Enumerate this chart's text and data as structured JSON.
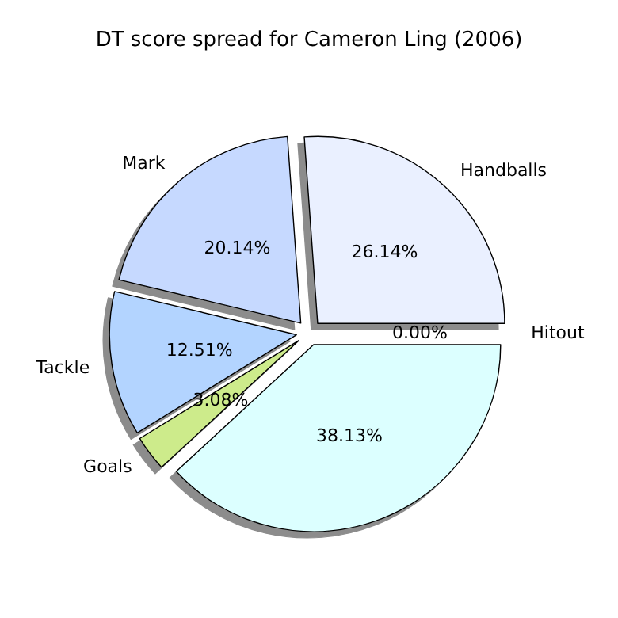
{
  "chart_data": {
    "type": "pie",
    "title": "DT score spread for Cameron Ling (2006)",
    "categories": [
      "Handballs",
      "Mark",
      "Tackle",
      "Goals",
      null,
      "Hitout"
    ],
    "values": [
      26.14,
      20.14,
      12.51,
      3.08,
      38.13,
      0.0
    ],
    "value_labels": [
      "26.14%",
      "20.14%",
      "12.51%",
      "3.08%",
      "38.13%",
      "0.00%"
    ],
    "colors": [
      "#eaf0ff",
      "#c6d9ff",
      "#b3d4ff",
      "#cdeb8b",
      "#dcffff",
      "#e0e8ff"
    ]
  }
}
